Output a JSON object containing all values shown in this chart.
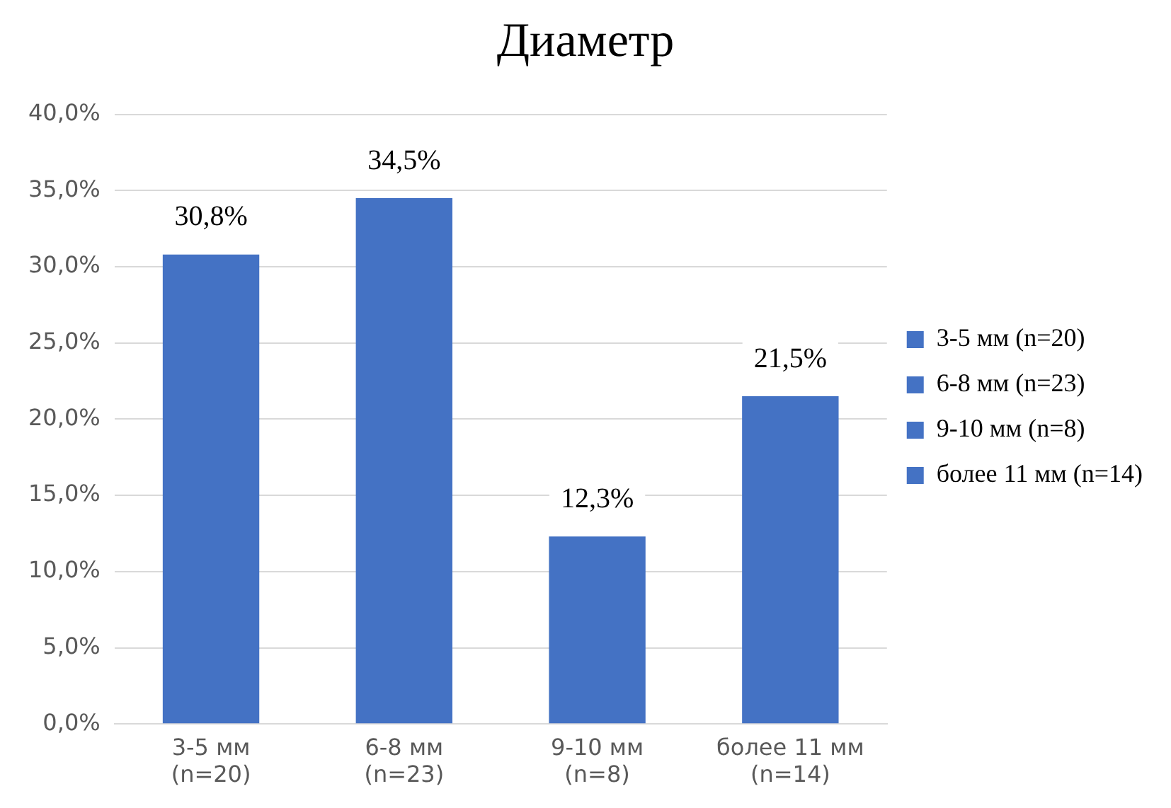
{
  "chart_data": {
    "type": "bar",
    "title": "Диаметр",
    "categories": [
      "3-5 мм (n=20)",
      "6-8 мм (n=23)",
      "9-10 мм (n=8)",
      "более 11 мм (n=14)"
    ],
    "series": [
      {
        "name": "3-5 мм (n=20)",
        "color": "#4472c4",
        "values": [
          30.8,
          null,
          null,
          null
        ],
        "value_labels": [
          "30,8%",
          null,
          null,
          null
        ]
      },
      {
        "name": "6-8 мм (n=23)",
        "color": "#4472c4",
        "values": [
          null,
          34.5,
          null,
          null
        ],
        "value_labels": [
          null,
          "34,5%",
          null,
          null
        ]
      },
      {
        "name": "9-10 мм (n=8)",
        "color": "#4472c4",
        "values": [
          null,
          null,
          12.3,
          null
        ],
        "value_labels": [
          null,
          null,
          "12,3%",
          null
        ]
      },
      {
        "name": "более 11 мм (n=14)",
        "color": "#4472c4",
        "values": [
          null,
          null,
          null,
          21.5
        ],
        "value_labels": [
          null,
          null,
          null,
          "21,5%"
        ]
      }
    ],
    "ylim": [
      0,
      40
    ],
    "yticks": [
      {
        "value": 0,
        "label": "0,0%"
      },
      {
        "value": 5,
        "label": "5,0%"
      },
      {
        "value": 10,
        "label": "10,0%"
      },
      {
        "value": 15,
        "label": "15,0%"
      },
      {
        "value": 20,
        "label": "20,0%"
      },
      {
        "value": 25,
        "label": "25,0%"
      },
      {
        "value": 30,
        "label": "30,0%"
      },
      {
        "value": 35,
        "label": "35,0%"
      },
      {
        "value": 40,
        "label": "40,0%"
      }
    ],
    "grid": "y",
    "legend": "right"
  }
}
